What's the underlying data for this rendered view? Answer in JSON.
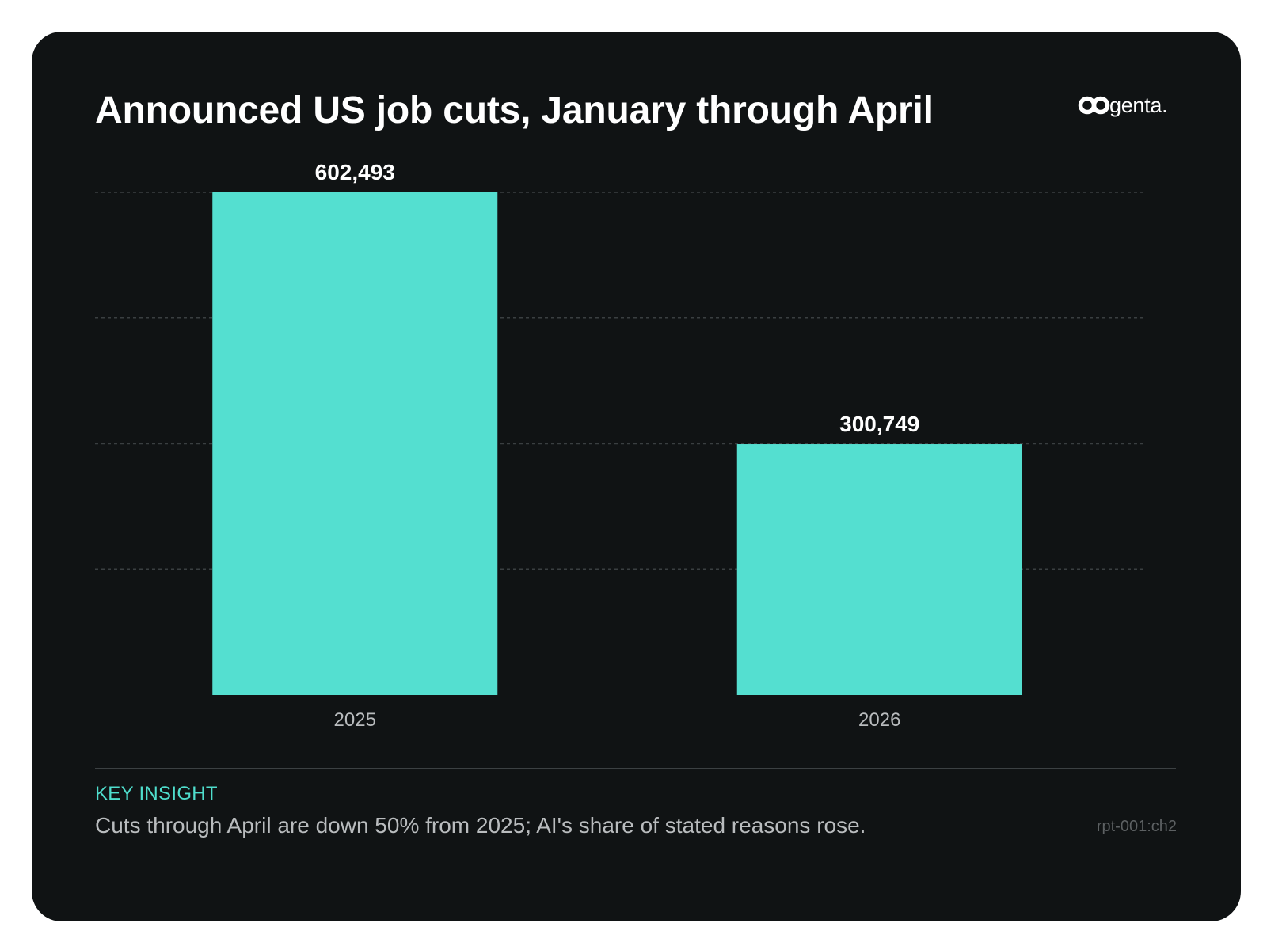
{
  "brand": {
    "logo_text": "cogenta."
  },
  "colors": {
    "background": "#101314",
    "bar": "#54dfd0",
    "accent": "#4fdecd",
    "text": "#ffffff",
    "muted_text": "#b9bcbe",
    "gridline": "#3a3f41"
  },
  "chart_data": {
    "type": "bar",
    "title": "Announced US job cuts, January through April",
    "xlabel": "",
    "ylabel": "",
    "categories": [
      "2025",
      "2026"
    ],
    "values": [
      602493,
      300749
    ],
    "data_labels": [
      "602,493",
      "300,749"
    ],
    "ylim": [
      0,
      602493
    ],
    "grid": true,
    "legend": "none"
  },
  "insight": {
    "label": "KEY INSIGHT",
    "text": "Cuts through April are down 50% from 2025; AI's share of stated reasons rose."
  },
  "report_id": "rpt-001:ch2"
}
